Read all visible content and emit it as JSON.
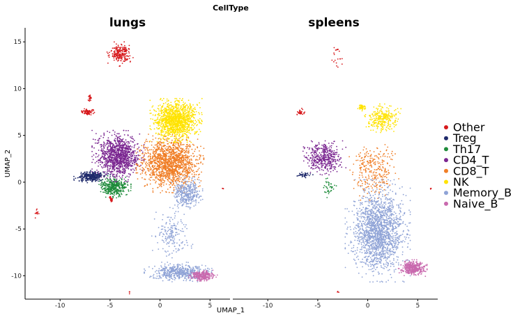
{
  "chart_data": {
    "type": "scatter",
    "title": "CellType",
    "xlabel": "UMAP_1",
    "ylabel": "UMAP_2",
    "panels": [
      "lungs",
      "spleens"
    ],
    "xlim": [
      -13.5,
      7
    ],
    "ylim": [
      -12.5,
      16.5
    ],
    "xticks": [
      -10,
      -5,
      0,
      5
    ],
    "yticks": [
      -10,
      -5,
      0,
      5,
      10,
      15
    ],
    "legend_position": "right",
    "series": [
      {
        "name": "Other",
        "color": "#D7191C"
      },
      {
        "name": "Treg",
        "color": "#1F2A6B"
      },
      {
        "name": "Th17",
        "color": "#1E8B3A"
      },
      {
        "name": "CD4_T",
        "color": "#7B2791"
      },
      {
        "name": "CD8_T",
        "color": "#F07E26"
      },
      {
        "name": "NK",
        "color": "#FFE300"
      },
      {
        "name": "Memory_B",
        "color": "#8FA3D6"
      },
      {
        "name": "Naive_B",
        "color": "#C96AAE"
      }
    ],
    "clusters": {
      "lungs": [
        {
          "series": "Other",
          "cx": -4.0,
          "cy": 13.7,
          "rx": 1.0,
          "ry": 1.0,
          "n": 220
        },
        {
          "series": "Other",
          "cx": -7.2,
          "cy": 7.5,
          "rx": 0.5,
          "ry": 0.3,
          "n": 90
        },
        {
          "series": "Other",
          "cx": -7.0,
          "cy": 9.0,
          "rx": 0.15,
          "ry": 0.6,
          "n": 25
        },
        {
          "series": "Other",
          "cx": -4.9,
          "cy": -1.8,
          "rx": 0.2,
          "ry": 0.3,
          "n": 25
        },
        {
          "series": "Other",
          "cx": -12.4,
          "cy": -3.3,
          "rx": 0.3,
          "ry": 0.4,
          "n": 12
        },
        {
          "series": "Other",
          "cx": 6.3,
          "cy": -0.7,
          "rx": 0.1,
          "ry": 0.1,
          "n": 4
        },
        {
          "series": "Other",
          "cx": -3.0,
          "cy": -11.8,
          "rx": 0.1,
          "ry": 0.1,
          "n": 4
        },
        {
          "series": "Treg",
          "cx": -6.8,
          "cy": 0.6,
          "rx": 1.4,
          "ry": 0.5,
          "n": 300
        },
        {
          "series": "Th17",
          "cx": -4.6,
          "cy": -0.5,
          "rx": 1.3,
          "ry": 0.9,
          "n": 380
        },
        {
          "series": "CD4_T",
          "cx": -4.2,
          "cy": 2.8,
          "rx": 2.0,
          "ry": 2.1,
          "n": 1100
        },
        {
          "series": "CD8_T",
          "cx": 1.0,
          "cy": 2.0,
          "rx": 2.6,
          "ry": 2.4,
          "n": 1500
        },
        {
          "series": "NK",
          "cx": 1.6,
          "cy": 6.6,
          "rx": 2.0,
          "ry": 1.8,
          "n": 1300
        },
        {
          "series": "Memory_B",
          "cx": 2.7,
          "cy": -1.2,
          "rx": 1.2,
          "ry": 1.4,
          "n": 350
        },
        {
          "series": "Memory_B",
          "cx": 1.2,
          "cy": -5.5,
          "rx": 1.6,
          "ry": 2.5,
          "n": 180
        },
        {
          "series": "Memory_B",
          "cx": 1.8,
          "cy": -9.6,
          "rx": 2.6,
          "ry": 0.8,
          "n": 500
        },
        {
          "series": "Naive_B",
          "cx": 4.3,
          "cy": -10.0,
          "rx": 1.1,
          "ry": 0.45,
          "n": 300
        }
      ],
      "spleens": [
        {
          "series": "Other",
          "cx": -3.2,
          "cy": 13.6,
          "rx": 0.6,
          "ry": 1.0,
          "n": 20
        },
        {
          "series": "Other",
          "cx": -6.8,
          "cy": 7.5,
          "rx": 0.4,
          "ry": 0.3,
          "n": 30
        },
        {
          "series": "Other",
          "cx": -3.0,
          "cy": -11.7,
          "rx": 0.1,
          "ry": 0.1,
          "n": 3
        },
        {
          "series": "Other",
          "cx": 6.3,
          "cy": -0.7,
          "rx": 0.1,
          "ry": 0.1,
          "n": 3
        },
        {
          "series": "Treg",
          "cx": -6.4,
          "cy": 0.8,
          "rx": 0.7,
          "ry": 0.3,
          "n": 40
        },
        {
          "series": "Th17",
          "cx": -4.0,
          "cy": -0.6,
          "rx": 0.7,
          "ry": 0.8,
          "n": 35
        },
        {
          "series": "CD4_T",
          "cx": -4.4,
          "cy": 2.6,
          "rx": 1.7,
          "ry": 1.4,
          "n": 420
        },
        {
          "series": "CD8_T",
          "cx": 0.5,
          "cy": 1.2,
          "rx": 2.0,
          "ry": 2.4,
          "n": 280
        },
        {
          "series": "NK",
          "cx": 1.5,
          "cy": 6.8,
          "rx": 1.4,
          "ry": 1.2,
          "n": 280
        },
        {
          "series": "NK",
          "cx": -0.6,
          "cy": 8.0,
          "rx": 0.3,
          "ry": 0.3,
          "n": 60
        },
        {
          "series": "Memory_B",
          "cx": 1.0,
          "cy": -5.2,
          "rx": 2.5,
          "ry": 4.2,
          "n": 1700
        },
        {
          "series": "Naive_B",
          "cx": 4.5,
          "cy": -9.2,
          "rx": 1.1,
          "ry": 0.7,
          "n": 400
        }
      ]
    }
  }
}
